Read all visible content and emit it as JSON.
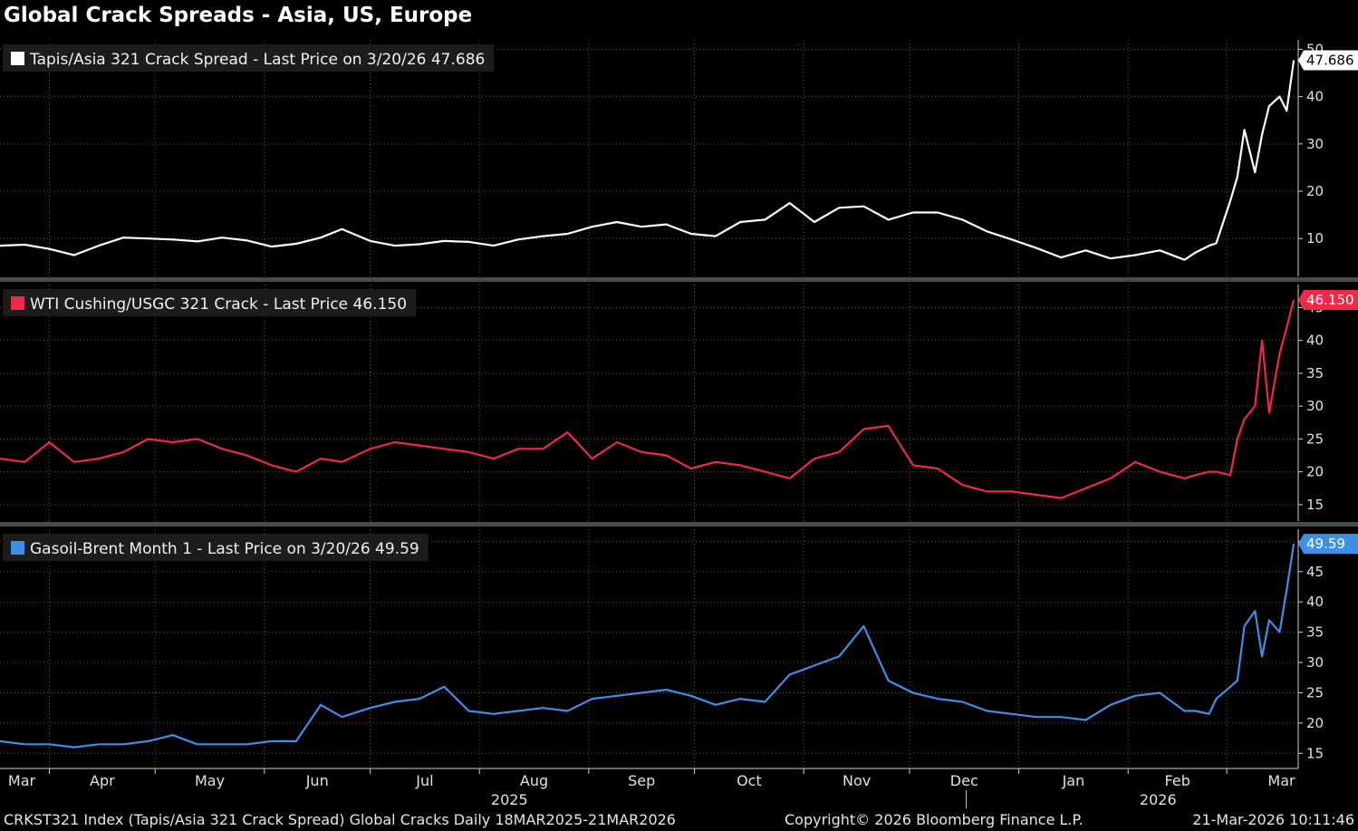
{
  "title": "Global Crack Spreads - Asia, US, Europe",
  "footer": {
    "left": "CRKST321 Index (Tapis/Asia 321 Crack Spread) Global Cracks Daily 18MAR2025-21MAR2026",
    "center": "Copyright© 2026 Bloomberg Finance L.P.",
    "right": "21-Mar-2026 10:11:46"
  },
  "chart_data": [
    {
      "type": "line",
      "title": "",
      "series": [
        {
          "name": "Tapis/Asia 321 Crack Spread - Last Price on 3/20/26 47.686",
          "color": "#ffffff",
          "last_value": "47.686",
          "x": [
            "2025-03-18",
            "2025-03-25",
            "2025-04-01",
            "2025-04-08",
            "2025-04-15",
            "2025-04-22",
            "2025-04-29",
            "2025-05-06",
            "2025-05-13",
            "2025-05-20",
            "2025-05-27",
            "2025-06-03",
            "2025-06-10",
            "2025-06-17",
            "2025-06-23",
            "2025-07-01",
            "2025-07-08",
            "2025-07-15",
            "2025-07-22",
            "2025-07-29",
            "2025-08-05",
            "2025-08-12",
            "2025-08-19",
            "2025-08-26",
            "2025-09-02",
            "2025-09-09",
            "2025-09-16",
            "2025-09-23",
            "2025-09-30",
            "2025-10-07",
            "2025-10-14",
            "2025-10-21",
            "2025-10-28",
            "2025-11-04",
            "2025-11-11",
            "2025-11-18",
            "2025-11-25",
            "2025-12-02",
            "2025-12-09",
            "2025-12-16",
            "2025-12-23",
            "2025-12-30",
            "2026-01-06",
            "2026-01-13",
            "2026-01-20",
            "2026-01-27",
            "2026-02-03",
            "2026-02-10",
            "2026-02-17",
            "2026-02-20",
            "2026-02-24",
            "2026-02-26",
            "2026-03-02",
            "2026-03-04",
            "2026-03-06",
            "2026-03-09",
            "2026-03-11",
            "2026-03-13",
            "2026-03-16",
            "2026-03-18",
            "2026-03-20"
          ],
          "values": [
            8.5,
            8.7,
            7.8,
            6.5,
            8.5,
            10.2,
            10,
            9.8,
            9.4,
            10.2,
            9.6,
            8.3,
            8.9,
            10.2,
            12,
            9.5,
            8.5,
            8.8,
            9.5,
            9.3,
            8.5,
            9.8,
            10.5,
            11,
            12.5,
            13.5,
            12.5,
            13,
            11,
            10.5,
            13.5,
            14,
            17.5,
            13.5,
            16.5,
            16.8,
            14,
            15.5,
            15.5,
            14,
            11.5,
            9.8,
            8,
            6,
            7.5,
            5.8,
            6.5,
            7.5,
            5.5,
            7,
            8.5,
            9,
            18,
            23,
            33,
            24,
            32,
            38,
            40,
            37,
            47.686
          ]
        }
      ],
      "y_ticks": [
        10,
        20,
        30,
        40,
        50
      ],
      "ylim": [
        2,
        52
      ]
    },
    {
      "type": "line",
      "title": "",
      "series": [
        {
          "name": "WTI Cushing/USGC 321 Crack - Last Price 46.150",
          "color": "#f0284a",
          "last_value": "46.150",
          "x": [
            "2025-03-18",
            "2025-03-25",
            "2025-04-01",
            "2025-04-08",
            "2025-04-15",
            "2025-04-22",
            "2025-04-29",
            "2025-05-06",
            "2025-05-13",
            "2025-05-20",
            "2025-05-27",
            "2025-06-03",
            "2025-06-10",
            "2025-06-17",
            "2025-06-23",
            "2025-07-01",
            "2025-07-08",
            "2025-07-15",
            "2025-07-22",
            "2025-07-29",
            "2025-08-05",
            "2025-08-12",
            "2025-08-19",
            "2025-08-26",
            "2025-09-02",
            "2025-09-09",
            "2025-09-16",
            "2025-09-23",
            "2025-09-30",
            "2025-10-07",
            "2025-10-14",
            "2025-10-21",
            "2025-10-28",
            "2025-11-04",
            "2025-11-11",
            "2025-11-18",
            "2025-11-25",
            "2025-12-02",
            "2025-12-09",
            "2025-12-16",
            "2025-12-23",
            "2025-12-30",
            "2026-01-06",
            "2026-01-13",
            "2026-01-20",
            "2026-01-27",
            "2026-02-03",
            "2026-02-10",
            "2026-02-17",
            "2026-02-20",
            "2026-02-24",
            "2026-02-26",
            "2026-03-02",
            "2026-03-04",
            "2026-03-06",
            "2026-03-09",
            "2026-03-11",
            "2026-03-13",
            "2026-03-16",
            "2026-03-18",
            "2026-03-20"
          ],
          "values": [
            22,
            21.5,
            24.5,
            21.5,
            22,
            23,
            25,
            24.5,
            25,
            23.5,
            22.5,
            21,
            20,
            22,
            21.5,
            23.5,
            24.5,
            24,
            23.5,
            23,
            22,
            23.5,
            23.5,
            26,
            22,
            24.5,
            23,
            22.5,
            20.5,
            21.5,
            21,
            20,
            19,
            22,
            23,
            26.5,
            27,
            21,
            20.5,
            18,
            17,
            17,
            16.5,
            16,
            17.5,
            19,
            21.5,
            20,
            19,
            19.5,
            20,
            20,
            19.5,
            25,
            28,
            30,
            40,
            29,
            38,
            42,
            46.15
          ]
        }
      ],
      "y_ticks": [
        15,
        20,
        25,
        30,
        35,
        40,
        45
      ],
      "ylim": [
        12.5,
        48.5
      ]
    },
    {
      "type": "line",
      "title": "",
      "series": [
        {
          "name": "Gasoil-Brent Month 1 - Last Price on 3/20/26 49.59",
          "color": "#3d8fe8",
          "last_value": "49.59",
          "x": [
            "2025-03-18",
            "2025-03-25",
            "2025-04-01",
            "2025-04-08",
            "2025-04-15",
            "2025-04-22",
            "2025-04-29",
            "2025-05-06",
            "2025-05-13",
            "2025-05-20",
            "2025-05-27",
            "2025-06-03",
            "2025-06-10",
            "2025-06-17",
            "2025-06-23",
            "2025-07-01",
            "2025-07-08",
            "2025-07-15",
            "2025-07-22",
            "2025-07-29",
            "2025-08-05",
            "2025-08-12",
            "2025-08-19",
            "2025-08-26",
            "2025-09-02",
            "2025-09-09",
            "2025-09-16",
            "2025-09-23",
            "2025-09-30",
            "2025-10-07",
            "2025-10-14",
            "2025-10-21",
            "2025-10-28",
            "2025-11-04",
            "2025-11-11",
            "2025-11-18",
            "2025-11-25",
            "2025-12-02",
            "2025-12-09",
            "2025-12-16",
            "2025-12-23",
            "2025-12-30",
            "2026-01-06",
            "2026-01-13",
            "2026-01-20",
            "2026-01-27",
            "2026-02-03",
            "2026-02-10",
            "2026-02-17",
            "2026-02-20",
            "2026-02-24",
            "2026-02-26",
            "2026-03-02",
            "2026-03-04",
            "2026-03-06",
            "2026-03-09",
            "2026-03-11",
            "2026-03-13",
            "2026-03-16",
            "2026-03-18",
            "2026-03-20"
          ],
          "values": [
            17,
            16.5,
            16.5,
            16,
            16.5,
            16.5,
            17,
            18,
            16.5,
            16.5,
            16.5,
            17,
            17,
            23,
            21,
            22.5,
            23.5,
            24,
            26,
            22,
            21.5,
            22,
            22.5,
            22,
            24,
            24.5,
            25,
            25.5,
            24.5,
            23,
            24,
            23.5,
            28,
            29.5,
            31,
            36,
            27,
            25,
            24,
            23.5,
            22,
            21.5,
            21,
            21,
            20.5,
            23,
            24.5,
            25,
            22,
            22,
            21.5,
            24,
            26,
            27,
            36,
            38.5,
            31,
            37,
            35,
            42,
            49.59
          ]
        }
      ],
      "y_ticks": [
        15,
        20,
        25,
        30,
        35,
        40,
        45,
        50
      ],
      "ylim": [
        12.5,
        52
      ]
    }
  ],
  "x_axis": {
    "months": [
      "Mar",
      "Apr",
      "May",
      "Jun",
      "Jul",
      "Aug",
      "Sep",
      "Oct",
      "Nov",
      "Dec",
      "Jan",
      "Feb",
      "Mar"
    ],
    "month_dates": [
      "2025-03-01",
      "2025-04-01",
      "2025-05-01",
      "2025-06-01",
      "2025-07-01",
      "2025-08-01",
      "2025-09-01",
      "2025-10-01",
      "2025-11-01",
      "2025-12-01",
      "2026-01-01",
      "2026-02-01",
      "2026-03-01"
    ],
    "years": [
      "2025",
      "2026"
    ],
    "range": [
      "2025-03-18",
      "2026-03-21"
    ]
  }
}
